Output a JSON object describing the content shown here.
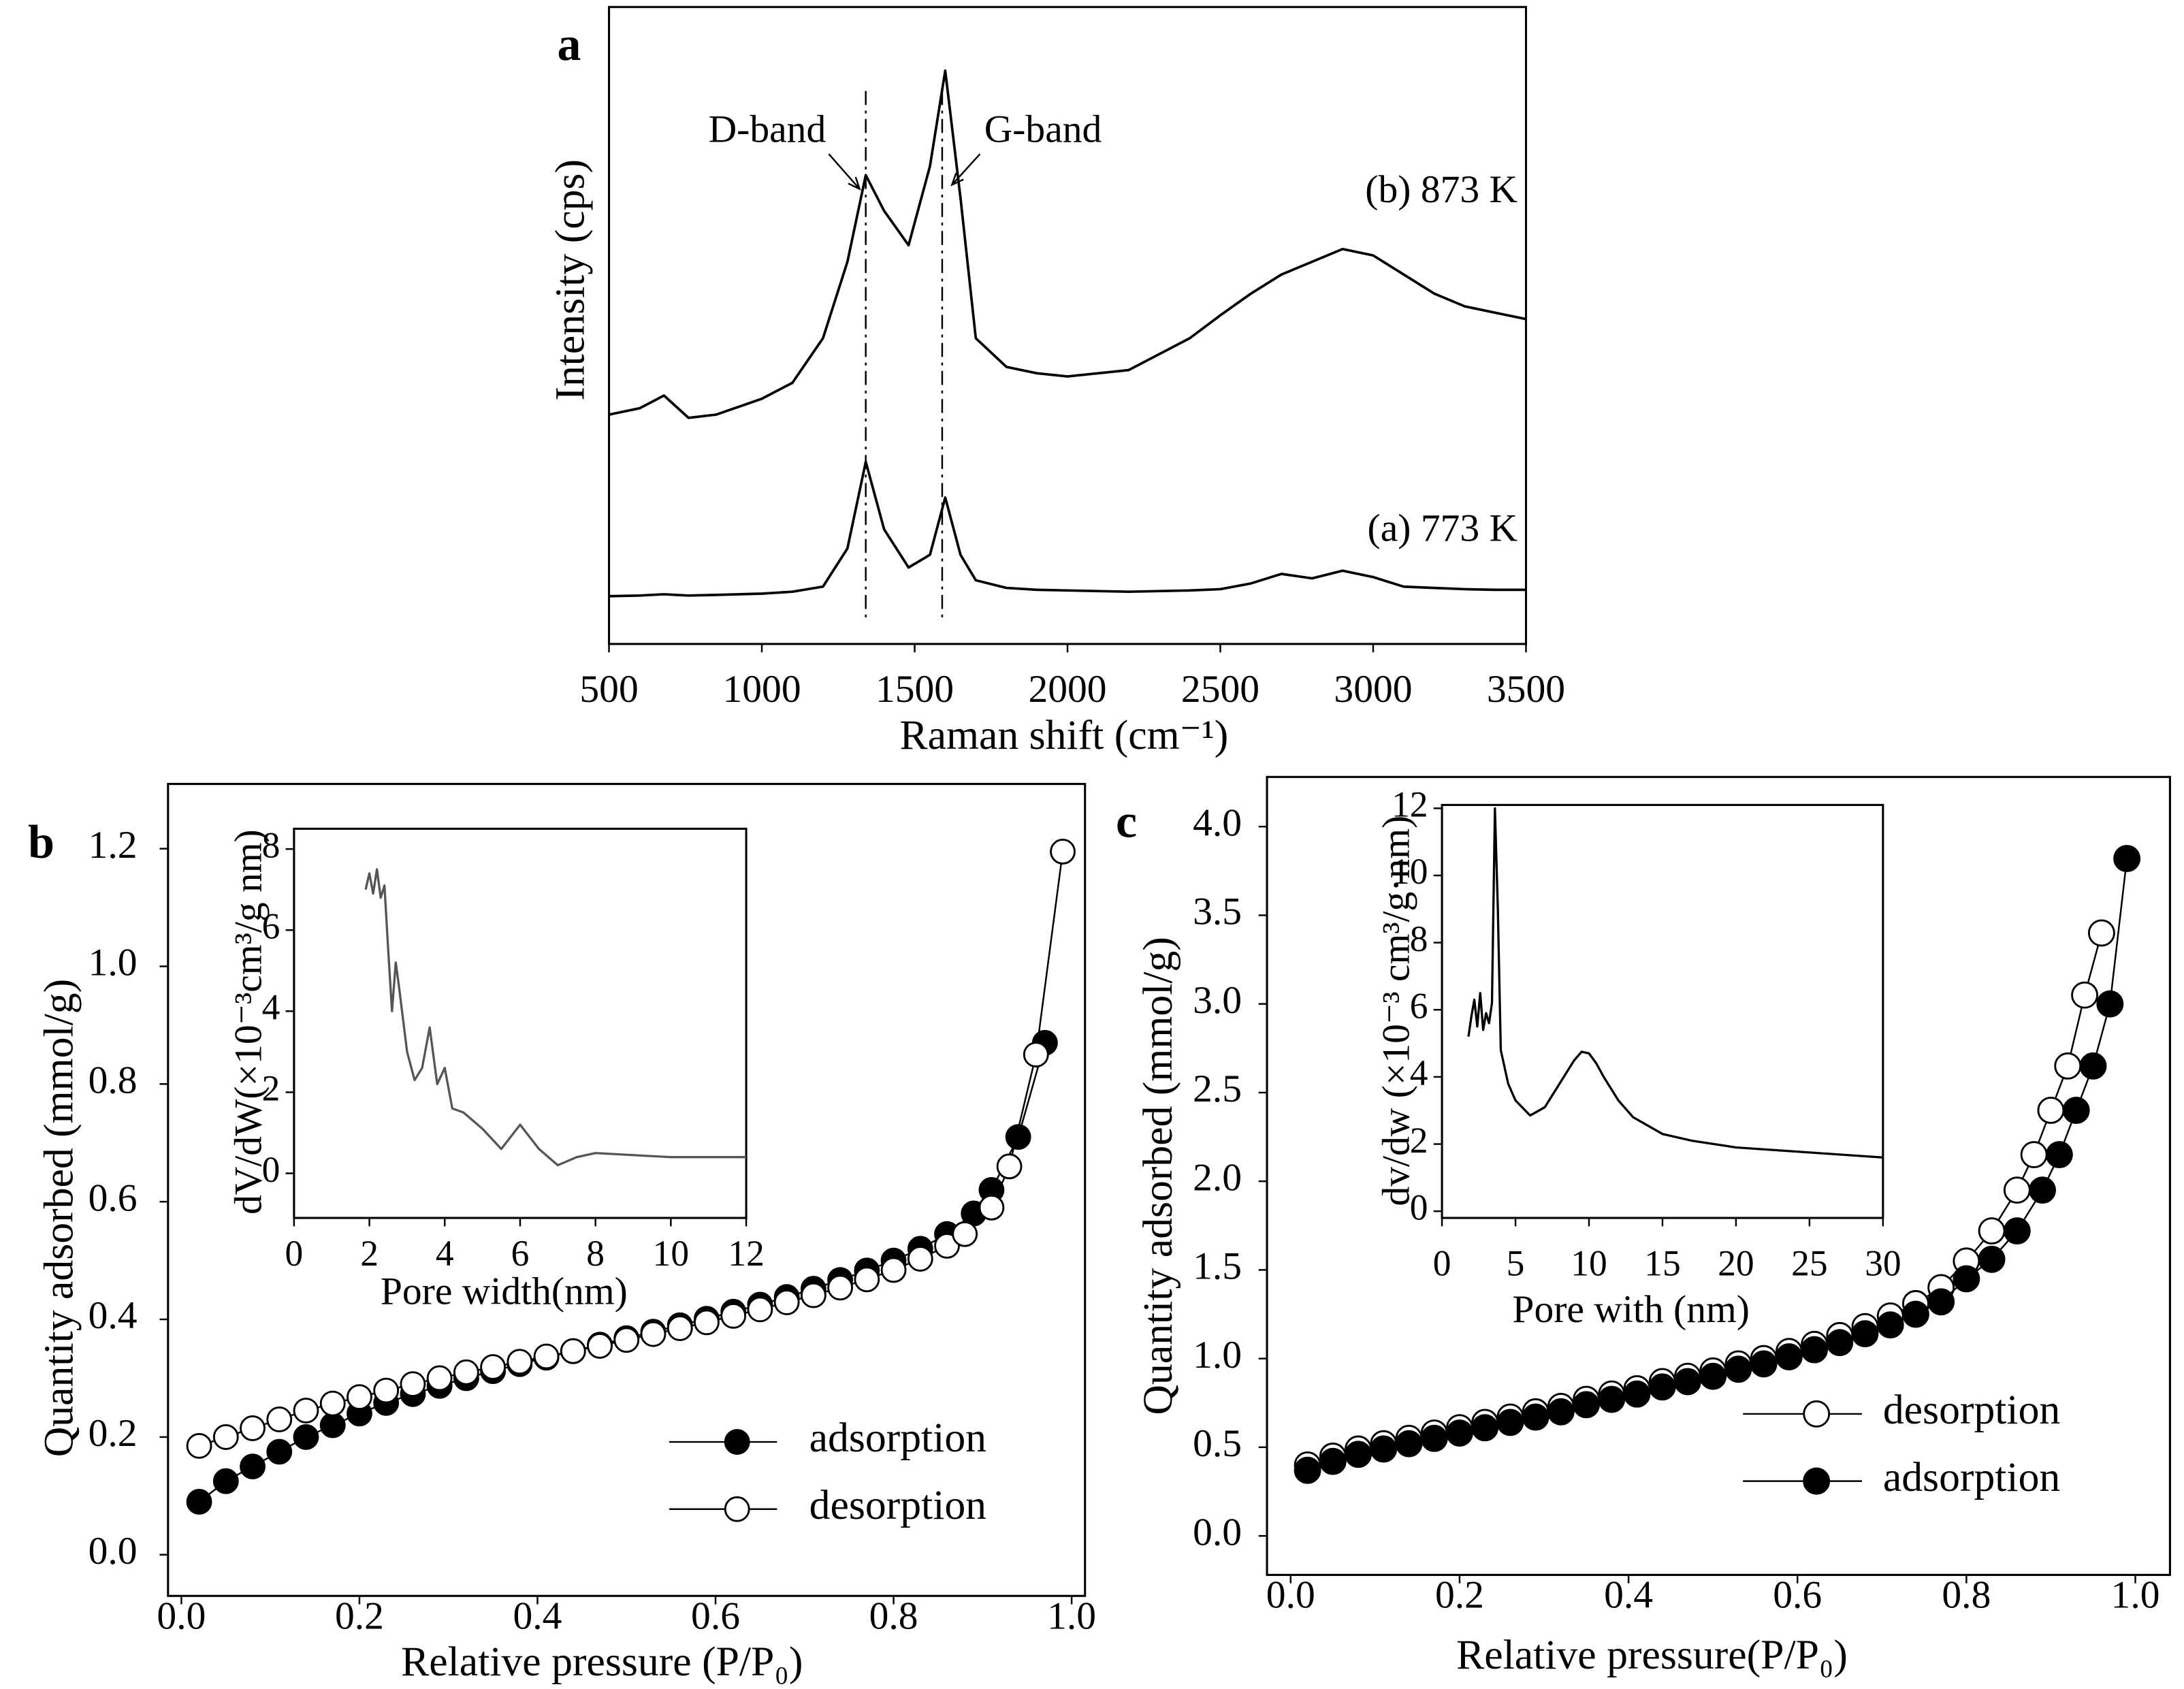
{
  "chart_data": [
    {
      "type": "line",
      "panel_label": "a",
      "x_label": "Raman shift (cm⁻¹)",
      "y_label": "Intensity (cps)",
      "x": [
        500,
        600,
        680,
        760,
        850,
        1000,
        1100,
        1200,
        1280,
        1340,
        1400,
        1480,
        1550,
        1600,
        1650,
        1700,
        1800,
        1900,
        2000,
        2200,
        2400,
        2500,
        2600,
        2700,
        2800,
        2900,
        3000,
        3100,
        3200,
        3300,
        3400,
        3500
      ],
      "series": [
        {
          "name": "(a) 773 K",
          "color": "#000000",
          "values": [
            7.5,
            7.6,
            7.8,
            7.6,
            7.7,
            7.9,
            8.2,
            9,
            15,
            28.6,
            18,
            12,
            14,
            23,
            14,
            10,
            8.8,
            8.5,
            8.4,
            8.2,
            8.4,
            8.6,
            9.5,
            11,
            10.3,
            11.5,
            10.5,
            9,
            8.8,
            8.6,
            8.5,
            8.5
          ]
        },
        {
          "name": "(b) 873 K",
          "color": "#000000",
          "values": [
            36,
            37,
            39,
            35.5,
            36,
            38.5,
            41,
            48,
            60,
            73.6,
            68,
            62.6,
            75,
            90,
            70,
            48,
            43.5,
            42.5,
            42,
            43,
            48,
            51.6,
            55,
            58,
            60,
            62,
            61,
            58,
            55,
            53,
            52,
            51
          ]
        }
      ],
      "annotations": [
        {
          "text": "D-band",
          "x": 1340
        },
        {
          "text": "G-band",
          "x": 1590
        }
      ],
      "xlim": [
        500,
        3500
      ],
      "xticks": [
        500,
        1000,
        1500,
        2000,
        2500,
        3000,
        3500
      ],
      "ylim": [
        0,
        100
      ]
    },
    {
      "type": "scatter",
      "panel_label": "b",
      "x_label": "Relative pressure (P/P₀)",
      "y_label": "Quantity adsorbed (mmol/g)",
      "xlim": [
        -0.015,
        1.015
      ],
      "xticks": [
        {
          "value": 0,
          "label": "0.0"
        },
        0.2,
        0.4,
        0.6,
        0.8,
        {
          "value": 1,
          "label": "1.0"
        }
      ],
      "ylim": [
        -0.07,
        1.31
      ],
      "yticks": [
        {
          "value": 0,
          "label": "0.0"
        },
        0.2,
        0.4,
        0.6,
        0.8,
        {
          "value": 1,
          "label": "1.0"
        },
        1.2
      ],
      "legend": "lower right",
      "series": [
        {
          "name": "adsorption",
          "color": "#000000",
          "fill": "#000000",
          "x": [
            0.02,
            0.05,
            0.08,
            0.11,
            0.14,
            0.17,
            0.2,
            0.23,
            0.26,
            0.29,
            0.32,
            0.35,
            0.38,
            0.41,
            0.44,
            0.47,
            0.5,
            0.53,
            0.56,
            0.59,
            0.62,
            0.65,
            0.68,
            0.71,
            0.74,
            0.77,
            0.8,
            0.83,
            0.86,
            0.89,
            0.91,
            0.94,
            0.97
          ],
          "values": [
            0.09,
            0.125,
            0.15,
            0.175,
            0.2,
            0.22,
            0.24,
            0.258,
            0.273,
            0.287,
            0.3,
            0.312,
            0.324,
            0.335,
            0.346,
            0.357,
            0.368,
            0.379,
            0.39,
            0.401,
            0.413,
            0.425,
            0.438,
            0.452,
            0.467,
            0.483,
            0.5,
            0.52,
            0.545,
            0.58,
            0.62,
            0.71,
            0.87
          ]
        },
        {
          "name": "desorption",
          "color": "#000000",
          "fill": "#ffffff",
          "x": [
            0.02,
            0.05,
            0.08,
            0.11,
            0.14,
            0.17,
            0.2,
            0.23,
            0.26,
            0.29,
            0.32,
            0.35,
            0.38,
            0.41,
            0.44,
            0.47,
            0.5,
            0.53,
            0.56,
            0.59,
            0.62,
            0.65,
            0.68,
            0.71,
            0.74,
            0.77,
            0.8,
            0.83,
            0.86,
            0.88,
            0.91,
            0.93,
            0.96,
            0.99
          ],
          "values": [
            0.185,
            0.2,
            0.215,
            0.23,
            0.245,
            0.257,
            0.268,
            0.279,
            0.29,
            0.3,
            0.31,
            0.319,
            0.328,
            0.337,
            0.346,
            0.355,
            0.365,
            0.375,
            0.385,
            0.395,
            0.406,
            0.417,
            0.429,
            0.441,
            0.454,
            0.468,
            0.484,
            0.503,
            0.525,
            0.545,
            0.59,
            0.66,
            0.85,
            1.195
          ]
        }
      ]
    },
    {
      "type": "line",
      "x_label": "Pore width(nm)",
      "y_label": "dV/dW(×10⁻³cm³/g nm)",
      "color": "#555555",
      "x": [
        1.9,
        2.0,
        2.1,
        2.2,
        2.3,
        2.4,
        2.5,
        2.6,
        2.7,
        2.8,
        3.0,
        3.2,
        3.4,
        3.6,
        3.8,
        4.0,
        4.2,
        4.5,
        5.0,
        5.5,
        6.0,
        6.5,
        7.0,
        7.5,
        8.0,
        9,
        10,
        11,
        12
      ],
      "values": [
        7.0,
        7.4,
        6.9,
        7.5,
        6.8,
        7.1,
        5.5,
        4.0,
        5.2,
        4.5,
        3.0,
        2.3,
        2.6,
        3.6,
        2.2,
        2.6,
        1.6,
        1.5,
        1.1,
        0.6,
        1.2,
        0.6,
        0.2,
        0.4,
        0.5,
        0.45,
        0.4,
        0.4,
        0.4
      ],
      "xlim": [
        0,
        12
      ],
      "xticks": [
        0,
        2,
        4,
        6,
        8,
        10,
        12
      ],
      "ylim": [
        -1.1,
        8.5
      ],
      "yticks": [
        0,
        2,
        4,
        6,
        8
      ]
    },
    {
      "type": "scatter",
      "panel_label": "c",
      "x_label": "Relative pressure(P/P₀)",
      "y_label": "Quantity adsorbed (mmol/g)",
      "xlim": [
        -0.028,
        1.041
      ],
      "xticks": [
        {
          "value": 0,
          "label": "0.0"
        },
        0.2,
        0.4,
        0.6,
        0.8,
        {
          "value": 1,
          "label": "1.0"
        }
      ],
      "ylim": [
        -0.22,
        4.28
      ],
      "yticks": [
        {
          "value": 0,
          "label": "0.0"
        },
        0.5,
        {
          "value": 1,
          "label": "1.0"
        },
        1.5,
        {
          "value": 2,
          "label": "2.0"
        },
        2.5,
        {
          "value": 3,
          "label": "3.0"
        },
        3.5,
        {
          "value": 4,
          "label": "4.0"
        }
      ],
      "legend": "lower right",
      "series": [
        {
          "name": "desorption",
          "color": "#000000",
          "fill": "#ffffff",
          "x": [
            0.02,
            0.05,
            0.08,
            0.11,
            0.14,
            0.17,
            0.2,
            0.23,
            0.26,
            0.29,
            0.32,
            0.35,
            0.38,
            0.41,
            0.44,
            0.47,
            0.5,
            0.53,
            0.56,
            0.59,
            0.62,
            0.65,
            0.68,
            0.71,
            0.74,
            0.77,
            0.8,
            0.83,
            0.86,
            0.88,
            0.9,
            0.92,
            0.94,
            0.96
          ],
          "values": [
            0.4,
            0.45,
            0.49,
            0.52,
            0.55,
            0.58,
            0.61,
            0.64,
            0.67,
            0.7,
            0.73,
            0.77,
            0.8,
            0.83,
            0.87,
            0.9,
            0.93,
            0.97,
            1.0,
            1.04,
            1.08,
            1.13,
            1.18,
            1.24,
            1.31,
            1.4,
            1.55,
            1.72,
            1.95,
            2.15,
            2.4,
            2.65,
            3.05,
            3.4
          ]
        },
        {
          "name": "adsorption",
          "color": "#000000",
          "fill": "#000000",
          "x": [
            0.02,
            0.05,
            0.08,
            0.11,
            0.14,
            0.17,
            0.2,
            0.23,
            0.26,
            0.29,
            0.32,
            0.35,
            0.38,
            0.41,
            0.44,
            0.47,
            0.5,
            0.53,
            0.56,
            0.59,
            0.62,
            0.65,
            0.68,
            0.71,
            0.74,
            0.77,
            0.8,
            0.83,
            0.86,
            0.89,
            0.91,
            0.93,
            0.95,
            0.97,
            0.99
          ],
          "values": [
            0.37,
            0.42,
            0.46,
            0.49,
            0.52,
            0.55,
            0.58,
            0.61,
            0.64,
            0.67,
            0.7,
            0.74,
            0.77,
            0.8,
            0.84,
            0.87,
            0.9,
            0.94,
            0.97,
            1.01,
            1.05,
            1.09,
            1.14,
            1.19,
            1.25,
            1.32,
            1.45,
            1.56,
            1.72,
            1.95,
            2.15,
            2.4,
            2.65,
            3.0,
            3.82
          ]
        }
      ]
    },
    {
      "type": "line",
      "x_label": "Pore with (nm)",
      "y_label": "dv/dw (×10⁻³ cm³/g·nm)",
      "color": "#000000",
      "x": [
        1.8,
        2.0,
        2.2,
        2.4,
        2.6,
        2.8,
        3.0,
        3.2,
        3.4,
        3.6,
        3.8,
        4.0,
        4.5,
        5,
        6,
        7,
        8,
        9,
        9.5,
        10,
        10.5,
        11,
        12,
        13,
        15,
        17,
        20,
        25,
        30
      ],
      "values": [
        5.2,
        5.8,
        6.3,
        5.5,
        6.5,
        5.4,
        5.9,
        5.6,
        6.2,
        12.0,
        9.0,
        4.8,
        3.8,
        3.3,
        2.85,
        3.1,
        3.8,
        4.5,
        4.75,
        4.7,
        4.4,
        4.0,
        3.3,
        2.8,
        2.3,
        2.1,
        1.9,
        1.75,
        1.6
      ],
      "xlim": [
        0,
        30
      ],
      "xticks": [
        0,
        5,
        10,
        15,
        20,
        25,
        30
      ],
      "ylim": [
        -0.2,
        12.1
      ],
      "yticks": [
        0,
        2,
        4,
        6,
        8,
        10,
        12
      ]
    }
  ]
}
